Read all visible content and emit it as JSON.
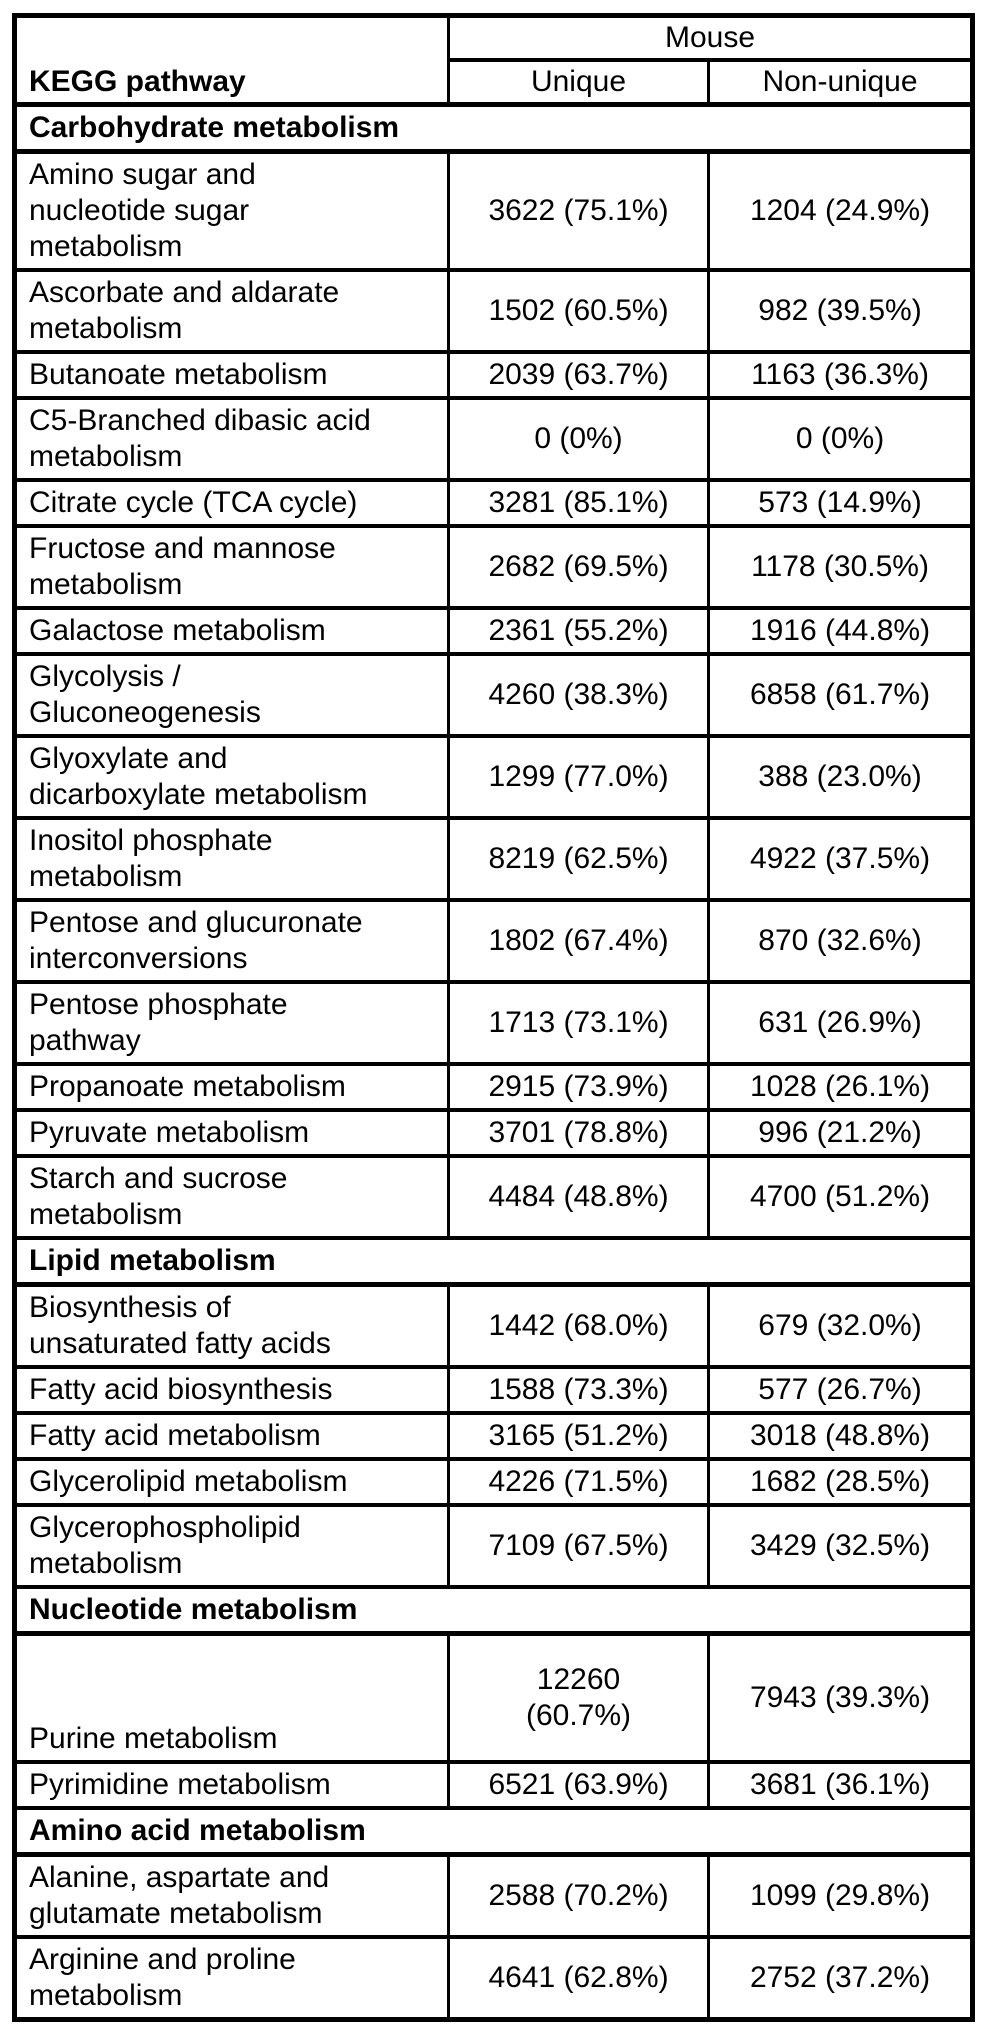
{
  "table": {
    "column_group_header": "Mouse",
    "columns": {
      "pathway": "KEGG pathway",
      "unique": "Unique",
      "non_unique": "Non-unique"
    },
    "sections": [
      {
        "title": "Carbohydrate metabolism",
        "rows": [
          {
            "pathway": "Amino sugar and\nnucleotide sugar\nmetabolism",
            "unique": "3622 (75.1%)",
            "non_unique": "1204 (24.9%)"
          },
          {
            "pathway": "Ascorbate and aldarate\nmetabolism",
            "unique": "1502 (60.5%)",
            "non_unique": "982 (39.5%)"
          },
          {
            "pathway": "Butanoate metabolism",
            "unique": "2039 (63.7%)",
            "non_unique": "1163 (36.3%)"
          },
          {
            "pathway": "C5-Branched dibasic acid\nmetabolism",
            "unique": "0 (0%)",
            "non_unique": "0 (0%)"
          },
          {
            "pathway": "Citrate cycle (TCA cycle)",
            "unique": "3281 (85.1%)",
            "non_unique": "573 (14.9%)"
          },
          {
            "pathway": "Fructose and mannose\nmetabolism",
            "unique": "2682 (69.5%)",
            "non_unique": "1178 (30.5%)"
          },
          {
            "pathway": "Galactose metabolism",
            "unique": "2361 (55.2%)",
            "non_unique": "1916 (44.8%)"
          },
          {
            "pathway": "Glycolysis /\nGluconeogenesis",
            "unique": "4260 (38.3%)",
            "non_unique": "6858 (61.7%)"
          },
          {
            "pathway": "Glyoxylate and\ndicarboxylate metabolism",
            "unique": "1299 (77.0%)",
            "non_unique": "388 (23.0%)"
          },
          {
            "pathway": "Inositol phosphate\nmetabolism",
            "unique": "8219 (62.5%)",
            "non_unique": "4922 (37.5%)"
          },
          {
            "pathway": "Pentose and glucuronate\ninterconversions",
            "unique": "1802 (67.4%)",
            "non_unique": "870 (32.6%)"
          },
          {
            "pathway": "Pentose phosphate\npathway",
            "unique": "1713 (73.1%)",
            "non_unique": "631 (26.9%)"
          },
          {
            "pathway": "Propanoate metabolism",
            "unique": "2915 (73.9%)",
            "non_unique": "1028 (26.1%)"
          },
          {
            "pathway": "Pyruvate metabolism",
            "unique": "3701 (78.8%)",
            "non_unique": "996 (21.2%)"
          },
          {
            "pathway": "Starch and sucrose\nmetabolism",
            "unique": "4484 (48.8%)",
            "non_unique": "4700 (51.2%)"
          }
        ]
      },
      {
        "title": "Lipid metabolism",
        "rows": [
          {
            "pathway": "Biosynthesis of\nunsaturated fatty acids",
            "unique": "1442 (68.0%)",
            "non_unique": "679 (32.0%)"
          },
          {
            "pathway": "Fatty acid biosynthesis",
            "unique": "1588 (73.3%)",
            "non_unique": "577 (26.7%)"
          },
          {
            "pathway": "Fatty acid metabolism",
            "unique": "3165 (51.2%)",
            "non_unique": "3018 (48.8%)"
          },
          {
            "pathway": "Glycerolipid metabolism",
            "unique": "4226 (71.5%)",
            "non_unique": "1682 (28.5%)"
          },
          {
            "pathway": "Glycerophospholipid\nmetabolism",
            "unique": "7109 (67.5%)",
            "non_unique": "3429 (32.5%)"
          }
        ]
      },
      {
        "title": "Nucleotide metabolism",
        "rows": [
          {
            "pathway": "Purine metabolism",
            "unique": "12260\n(60.7%)",
            "non_unique": "7943 (39.3%)",
            "tall": true
          },
          {
            "pathway": "Pyrimidine metabolism",
            "unique": "6521 (63.9%)",
            "non_unique": "3681 (36.1%)"
          }
        ]
      },
      {
        "title": "Amino acid metabolism",
        "rows": [
          {
            "pathway": "Alanine, aspartate and\nglutamate metabolism",
            "unique": "2588 (70.2%)",
            "non_unique": "1099 (29.8%)"
          },
          {
            "pathway": "Arginine and proline\nmetabolism",
            "unique": "4641 (62.8%)",
            "non_unique": "2752 (37.2%)"
          }
        ]
      }
    ]
  }
}
